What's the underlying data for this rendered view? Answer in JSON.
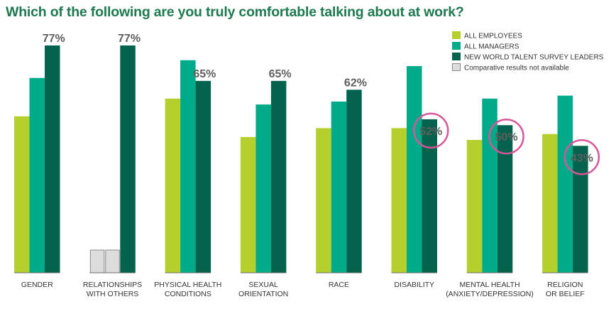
{
  "chart_data": {
    "type": "bar",
    "title": "Which of the following are you truly comfortable talking about at work?",
    "categories": [
      [
        "GENDER"
      ],
      [
        "RELATIONSHIPS",
        "WITH OTHERS"
      ],
      [
        "PHYSICAL HEALTH",
        "CONDITIONS"
      ],
      [
        "SEXUAL",
        "ORIENTATION"
      ],
      [
        "RACE"
      ],
      [
        "DISABILITY"
      ],
      [
        "MENTAL HEALTH",
        "(ANXIETY/DEPRESSION)"
      ],
      [
        "RELIGION",
        "OR BELIEF"
      ]
    ],
    "series": [
      {
        "name": "ALL EMPLOYEES",
        "color": "#b5cf2c",
        "values": [
          53,
          null,
          59,
          46,
          49,
          49,
          45,
          47
        ]
      },
      {
        "name": "ALL MANAGERS",
        "color": "#00ab8a",
        "values": [
          66,
          null,
          72,
          57,
          58,
          70,
          59,
          60
        ]
      },
      {
        "name": "NEW WORLD TALENT SURVEY LEADERS",
        "color": "#04634d",
        "values": [
          77,
          77,
          65,
          65,
          62,
          52,
          50,
          43
        ]
      }
    ],
    "data_labels": [
      "77%",
      "77%",
      "65%",
      "65%",
      "62%",
      "52%",
      "50%",
      "43%"
    ],
    "highlighted_categories": [
      5,
      6,
      7
    ],
    "highlight_color": "#d9559b",
    "not_available": {
      "label": "Comparative results not available",
      "fill": "#dcdcdc",
      "stroke": "#8a8a8a"
    },
    "ylim": [
      0,
      77
    ],
    "grid": false,
    "legend_position": "top-right",
    "text_color": "#333333",
    "label_color": "#5f5f5f"
  }
}
